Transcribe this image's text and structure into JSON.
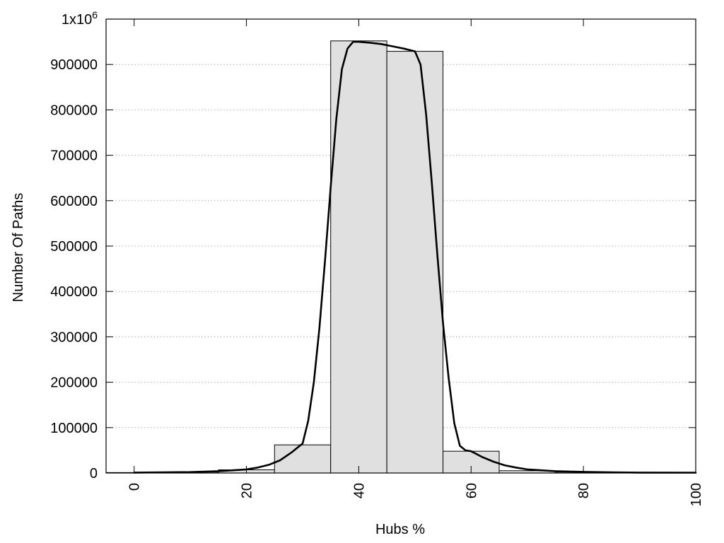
{
  "chart_data": {
    "type": "bar",
    "title": "",
    "xlabel": "Hubs %",
    "ylabel": "Number Of Paths",
    "xlim": [
      -5,
      100
    ],
    "ylim": [
      0,
      1000000
    ],
    "grid": true,
    "bar_width": 10,
    "bars": [
      {
        "x": 0,
        "value": 1000
      },
      {
        "x": 10,
        "value": 2000
      },
      {
        "x": 20,
        "value": 7000
      },
      {
        "x": 30,
        "value": 62000
      },
      {
        "x": 40,
        "value": 952000
      },
      {
        "x": 50,
        "value": 929000
      },
      {
        "x": 60,
        "value": 48000
      },
      {
        "x": 70,
        "value": 5000
      },
      {
        "x": 80,
        "value": 2000
      },
      {
        "x": 90,
        "value": 1000
      }
    ],
    "curve": {
      "x": [
        0,
        5,
        10,
        15,
        20,
        22,
        24,
        26,
        28,
        30,
        31,
        32,
        33,
        34,
        35,
        36,
        37,
        38,
        39,
        40,
        42,
        44,
        46,
        48,
        50,
        51,
        52,
        53,
        54,
        55,
        56,
        57,
        58,
        59,
        60,
        62,
        64,
        66,
        68,
        70,
        75,
        80,
        85,
        90,
        100
      ],
      "y": [
        1000,
        1500,
        2000,
        4000,
        8000,
        12000,
        18000,
        28000,
        45000,
        65000,
        115000,
        200000,
        320000,
        470000,
        630000,
        780000,
        890000,
        935000,
        950000,
        950000,
        948000,
        945000,
        940000,
        935000,
        929000,
        900000,
        790000,
        640000,
        480000,
        330000,
        210000,
        110000,
        60000,
        50000,
        48000,
        35000,
        25000,
        17000,
        12000,
        8000,
        4000,
        2500,
        1500,
        1000,
        800
      ]
    },
    "xticks": [
      0,
      20,
      40,
      60,
      80,
      100
    ],
    "xtick_labels": [
      "0",
      "20",
      "40",
      "60",
      "80",
      "100"
    ],
    "yticks": [
      0,
      100000,
      200000,
      300000,
      400000,
      500000,
      600000,
      700000,
      800000,
      900000
    ],
    "ytick_labels": [
      "0",
      "100000",
      "200000",
      "300000",
      "400000",
      "500000",
      "600000",
      "700000",
      "800000",
      "900000"
    ],
    "ytop_label_base": "1x10",
    "ytop_label_exp": "6"
  },
  "colors": {
    "bar_fill": "#e0e0e0",
    "bar_stroke": "#000000",
    "grid": "#b0b0b0",
    "curve": "#000000"
  }
}
